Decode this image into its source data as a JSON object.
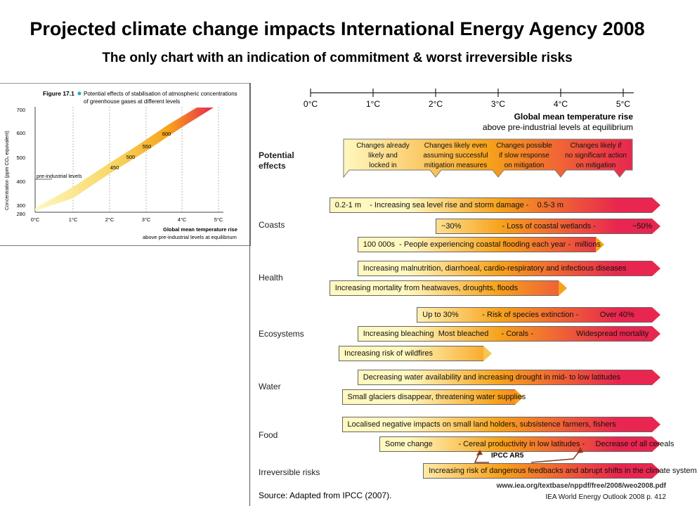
{
  "header": {
    "title": "Projected climate change impacts International Energy Agency 2008",
    "subtitle": "The only chart with  an indication of commitment & worst irreversible risks"
  },
  "inset": {
    "figure_label": "Figure 17.1",
    "caption_line1": "Potential effects of stabilisation of atmospheric concentrations",
    "caption_line2": "of greenhouse gases at different levels",
    "ylabel": "Concentration (ppm CO₂ equivalent)",
    "yticks": [
      "700",
      "600",
      "500",
      "400",
      "300",
      "280"
    ],
    "xticks": [
      "0°C",
      "1°C",
      "2°C",
      "3°C",
      "4°C",
      "5°C"
    ],
    "xlabel_line1": "Global mean temperature rise",
    "xlabel_line2": "above pre-industrial levels at equilibrium",
    "preindustrial_label": "pre-industrial levels",
    "band_labels": [
      "450",
      "500",
      "550",
      "600"
    ],
    "colors": {
      "low": "#fff8c0",
      "mid": "#f7a21b",
      "high": "#e8264f"
    }
  },
  "main": {
    "axis_ticks": [
      "0°C",
      "1°C",
      "2°C",
      "3°C",
      "4°C",
      "5°C"
    ],
    "axis_label_line1": "Global mean temperature rise",
    "axis_label_line2": "above pre-industrial levels at equilibrium",
    "potential_effects_label_line1": "Potential",
    "potential_effects_label_line2": "effects",
    "callouts": [
      {
        "line1": "Changes already",
        "line2": "likely and",
        "line3": "locked in"
      },
      {
        "line1": "Changes likely even",
        "line2": "assuming successful",
        "line3": "mitigation measures"
      },
      {
        "line1": "Changes possible",
        "line2": "if slow response",
        "line3": "on mitigation"
      },
      {
        "line1": "Changes likely if",
        "line2": "no significant action",
        "line3": "on mitigation"
      }
    ],
    "categories": [
      "Coasts",
      "Health",
      "Ecosystems",
      "Water",
      "Food",
      "Irreversible risks"
    ],
    "arrows": [
      {
        "label": "0.2-1 m    - Increasing sea level rise and storm damage -    0.5-3 m",
        "start_c": 0.3,
        "end_c": 5.6
      },
      {
        "label": "~30%                   - Loss of coastal wetlands -                 ~50%",
        "start_c": 2.0,
        "end_c": 5.6
      },
      {
        "label": "100 000s  - People experiencing coastal flooding each year -  millions",
        "start_c": 0.75,
        "end_c": 4.7
      },
      {
        "label": "Increasing malnutrition, diarrhoeal, cardio-respiratory and infectious diseases",
        "start_c": 0.75,
        "end_c": 5.6
      },
      {
        "label": "Increasing mortality from heatwaves, droughts, floods",
        "start_c": 0.3,
        "end_c": 4.1
      },
      {
        "label": "Up to 30%           - Risk of species extinction -          Over 40%",
        "start_c": 1.7,
        "end_c": 5.6
      },
      {
        "label": "Increasing bleaching  Most bleached      - Corals -                    Widespread mortality",
        "start_c": 0.75,
        "end_c": 5.6
      },
      {
        "label": "Increasing risk of wildfires",
        "start_c": 0.45,
        "end_c": 2.9
      },
      {
        "label": "Decreasing water availability and increasing drought in mid- to low latitudes",
        "start_c": 0.75,
        "end_c": 5.6
      },
      {
        "label": "Small glaciers disappear, threatening water supplies",
        "start_c": 0.5,
        "end_c": 3.4
      },
      {
        "label": "Localised negative impacts on small land holders, subsistence farmers, fishers",
        "start_c": 0.5,
        "end_c": 5.6
      },
      {
        "label": "Some change            - Cereal productivity in low latitudes -     Decrease of all cereals",
        "start_c": 1.1,
        "end_c": 5.6
      },
      {
        "label": "Increasing risk of dangerous feedbacks and abrupt shifts in the climate system",
        "start_c": 1.8,
        "end_c": 5.6
      }
    ],
    "ipcc_label": "IPCC AR5",
    "source": "Source: Adapted from IPCC (2007).",
    "url": "www.iea.org/textbase/nppdf/free/2008/weo2008.pdf",
    "reference": "IEA World Energy Outlook  2008 p. 412",
    "colors": {
      "yellow": "#fff8c0",
      "orange": "#f7a21b",
      "red": "#e8264f",
      "arrow_ipcc": "#8b3a1a"
    }
  }
}
